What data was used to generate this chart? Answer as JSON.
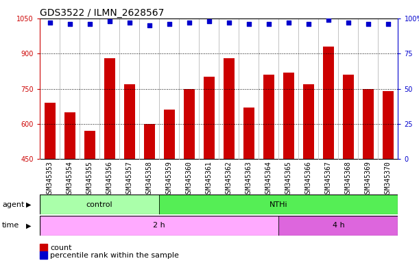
{
  "title": "GDS3522 / ILMN_2628567",
  "samples": [
    "GSM345353",
    "GSM345354",
    "GSM345355",
    "GSM345356",
    "GSM345357",
    "GSM345358",
    "GSM345359",
    "GSM345360",
    "GSM345361",
    "GSM345362",
    "GSM345363",
    "GSM345364",
    "GSM345365",
    "GSM345366",
    "GSM345367",
    "GSM345368",
    "GSM345369",
    "GSM345370"
  ],
  "counts": [
    690,
    650,
    570,
    880,
    770,
    600,
    660,
    750,
    800,
    880,
    670,
    810,
    820,
    770,
    930,
    810,
    750,
    740
  ],
  "percentile_ranks": [
    97,
    96,
    96,
    98,
    97,
    95,
    96,
    97,
    98,
    97,
    96,
    96,
    97,
    96,
    99,
    97,
    96,
    96
  ],
  "ylim_left": [
    450,
    1050
  ],
  "ylim_right": [
    0,
    100
  ],
  "yticks_left": [
    450,
    600,
    750,
    900,
    1050
  ],
  "yticks_right": [
    0,
    25,
    50,
    75,
    100
  ],
  "bar_color": "#cc0000",
  "dot_color": "#0000cc",
  "agent_groups": [
    {
      "label": "control",
      "start": 0,
      "end": 5,
      "color": "#aaffaa"
    },
    {
      "label": "NTHi",
      "start": 6,
      "end": 17,
      "color": "#55ee55"
    }
  ],
  "time_groups": [
    {
      "label": "2 h",
      "start": 0,
      "end": 11,
      "color": "#ffaaff"
    },
    {
      "label": "4 h",
      "start": 12,
      "end": 17,
      "color": "#dd66dd"
    }
  ],
  "legend_items": [
    {
      "color": "#cc0000",
      "label": "count"
    },
    {
      "color": "#0000cc",
      "label": "percentile rank within the sample"
    }
  ],
  "bg_color": "#ffffff",
  "plot_bg_color": "#ffffff",
  "grid_color": "#000000",
  "col_sep_color": "#aaaaaa",
  "xtick_bg_color": "#cccccc",
  "title_fontsize": 10,
  "tick_fontsize": 7,
  "label_fontsize": 8,
  "bar_bottom": 450
}
